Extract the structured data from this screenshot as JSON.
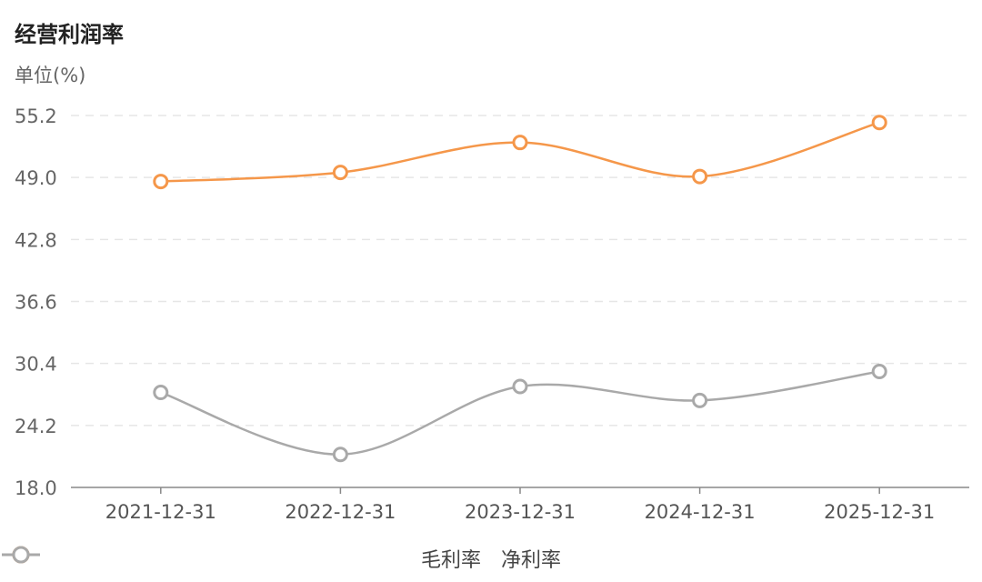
{
  "title": "经营利润率",
  "unit": "单位(%)",
  "colors": {
    "gross": "#F5974A",
    "net": "#A9A9A9",
    "axis": "#888888",
    "grid": "#E6E6E6"
  },
  "chart_data": {
    "type": "line",
    "title": "经营利润率",
    "ylabel": "单位(%)",
    "xlabel": "",
    "categories": [
      "2021-12-31",
      "2022-12-31",
      "2023-12-31",
      "2024-12-31",
      "2025-12-31"
    ],
    "series": [
      {
        "name": "毛利率",
        "values": [
          48.6,
          49.5,
          52.5,
          49.1,
          54.5
        ]
      },
      {
        "name": "净利率",
        "values": [
          27.5,
          21.3,
          28.1,
          26.7,
          29.6
        ]
      }
    ],
    "ylim": [
      18.0,
      55.2
    ],
    "yticks": [
      "18.0",
      "24.2",
      "30.4",
      "36.6",
      "42.8",
      "49.0",
      "55.2"
    ],
    "grid": true,
    "legend": "bottom"
  }
}
